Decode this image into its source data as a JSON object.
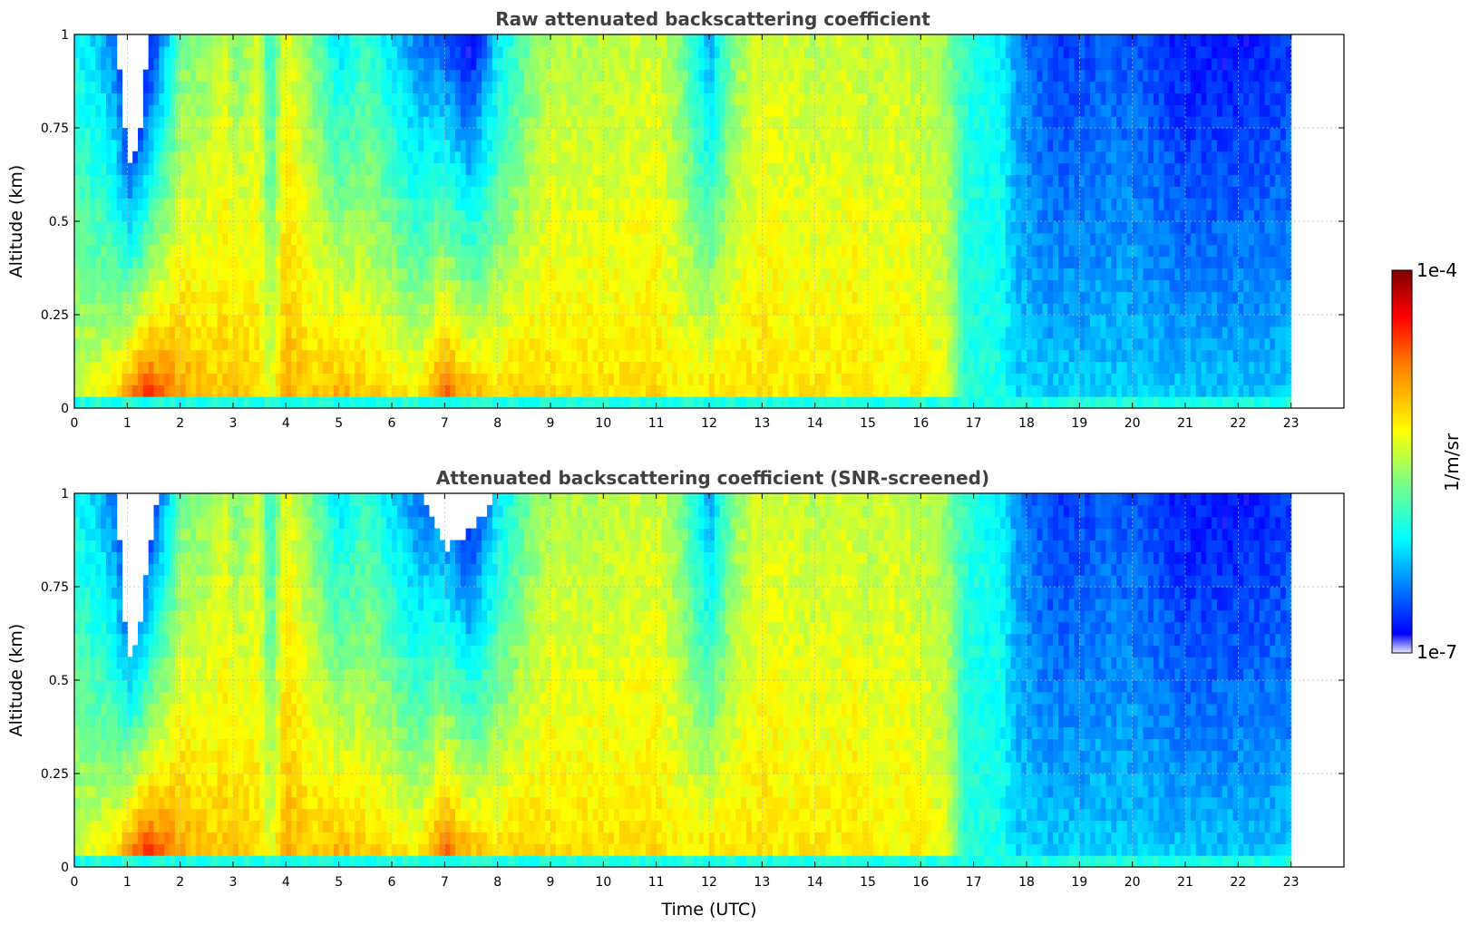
{
  "figure": {
    "xlabel": "Time (UTC)",
    "colorbar": {
      "label": "1/m/sr",
      "min_label": "1e-7",
      "max_label": "1e-4",
      "scale": "log",
      "range": [
        1e-07,
        0.0001
      ],
      "colormap": "jet",
      "colors": [
        "#e6e6ff",
        "#0000ff",
        "#00ffff",
        "#80ff80",
        "#ffff00",
        "#ff8000",
        "#ff0000",
        "#800000"
      ]
    }
  },
  "chart_data": [
    {
      "type": "heatmap",
      "title": "Raw attenuated backscattering coefficient",
      "xlabel": "",
      "ylabel": "Altitude (km)",
      "xlim": [
        0,
        24
      ],
      "ylim": [
        0,
        1
      ],
      "x_ticks": [
        "0",
        "1",
        "2",
        "3",
        "4",
        "5",
        "6",
        "7",
        "8",
        "9",
        "10",
        "11",
        "12",
        "13",
        "14",
        "15",
        "16",
        "17",
        "18",
        "19",
        "20",
        "21",
        "22",
        "23"
      ],
      "y_ticks": [
        "0",
        "0.25",
        "0.5",
        "0.75",
        "1"
      ],
      "grid": true,
      "data_end_time": 23,
      "columns_log10": {
        "time": [
          0,
          0.5,
          0.8,
          1.0,
          1.2,
          1.4,
          1.6,
          1.8,
          2.0,
          2.5,
          2.9,
          3.0,
          3.5,
          3.7,
          4.0,
          4.5,
          5.0,
          5.5,
          6.0,
          6.5,
          7.0,
          7.5,
          8.0,
          8.5,
          9.0,
          9.5,
          10.0,
          11.0,
          11.5,
          12.0,
          12.5,
          13.0,
          13.5,
          14.0,
          14.5,
          14.7,
          15.0,
          15.5,
          16.0,
          16.5,
          16.8,
          17.0,
          17.5,
          17.8,
          18.5,
          19.5,
          20.0,
          21.0,
          22.0,
          23.0
        ],
        "surface": [
          -5.3,
          -5.2,
          -5.0,
          -4.6,
          -4.4,
          -4.3,
          -4.5,
          -4.6,
          -4.8,
          -5.0,
          -5.0,
          -4.9,
          -5.1,
          -5.3,
          -4.9,
          -5.0,
          -4.8,
          -5.0,
          -5.0,
          -5.1,
          -4.5,
          -4.8,
          -5.0,
          -5.0,
          -5.1,
          -5.1,
          -5.1,
          -5.1,
          -5.2,
          -5.0,
          -5.1,
          -5.1,
          -5.2,
          -5.1,
          -5.2,
          -5.1,
          -5.2,
          -5.2,
          -5.2,
          -5.3,
          -5.9,
          -6.0,
          -6.0,
          -6.2,
          -6.2,
          -6.2,
          -6.2,
          -6.2,
          -6.2,
          -6.2
        ],
        "top": [
          -6.1,
          -6.3,
          -6.6,
          -7.3,
          -7.3,
          -6.9,
          -6.5,
          -6.2,
          -5.7,
          -5.6,
          -5.4,
          -5.7,
          -5.4,
          -6.0,
          -5.3,
          -5.7,
          -6.2,
          -5.9,
          -6.2,
          -6.5,
          -6.6,
          -6.9,
          -6.2,
          -5.8,
          -5.5,
          -5.5,
          -5.5,
          -5.4,
          -5.7,
          -6.4,
          -5.6,
          -5.4,
          -5.4,
          -5.5,
          -5.4,
          -5.4,
          -5.5,
          -5.4,
          -5.5,
          -5.6,
          -5.9,
          -6.0,
          -6.1,
          -6.4,
          -6.7,
          -6.6,
          -6.6,
          -6.8,
          -6.8,
          -6.7
        ],
        "empty_above_km": [
          1,
          1,
          1,
          0.66,
          0.68,
          1,
          1,
          1,
          1,
          1,
          1,
          1,
          1,
          1,
          1,
          1,
          1,
          1,
          1,
          1,
          1,
          1,
          1,
          1,
          1,
          1,
          1,
          1,
          1,
          1,
          1,
          1,
          1,
          1,
          1,
          1,
          1,
          1,
          1,
          1,
          1,
          1,
          1,
          1,
          1,
          1,
          1,
          1,
          1,
          1
        ]
      }
    },
    {
      "type": "heatmap",
      "title": "Attenuated backscattering coefficient (SNR-screened)",
      "xlabel": "Time (UTC)",
      "ylabel": "Altitude (km)",
      "xlim": [
        0,
        24
      ],
      "ylim": [
        0,
        1
      ],
      "x_ticks": [
        "0",
        "1",
        "2",
        "3",
        "4",
        "5",
        "6",
        "7",
        "8",
        "9",
        "10",
        "11",
        "12",
        "13",
        "14",
        "15",
        "16",
        "17",
        "18",
        "19",
        "20",
        "21",
        "22",
        "23"
      ],
      "y_ticks": [
        "0",
        "0.25",
        "0.5",
        "0.75",
        "1"
      ],
      "grid": true,
      "data_end_time": 23,
      "screened_out_color": "#000000",
      "columns_log10": {
        "time": [
          0,
          0.5,
          0.8,
          1.0,
          1.2,
          1.4,
          1.6,
          1.8,
          2.0,
          2.5,
          2.9,
          3.0,
          3.5,
          3.7,
          4.0,
          4.5,
          5.0,
          5.5,
          6.0,
          6.5,
          7.0,
          7.5,
          8.0,
          8.5,
          9.0,
          9.5,
          10.0,
          11.0,
          11.5,
          12.0,
          12.5,
          13.0,
          13.5,
          14.0,
          14.5,
          14.7,
          15.0,
          15.5,
          16.0,
          16.5,
          16.8,
          17.0,
          17.5,
          17.8,
          18.5,
          19.5,
          20.0,
          21.0,
          22.0,
          23.0
        ],
        "surface": [
          -5.3,
          -5.2,
          -5.0,
          -4.6,
          -4.4,
          -4.3,
          -4.5,
          -4.6,
          -4.8,
          -5.0,
          -5.0,
          -4.9,
          -5.1,
          -5.3,
          -4.9,
          -5.0,
          -4.8,
          -5.0,
          -5.0,
          -5.1,
          -4.5,
          -4.8,
          -5.0,
          -5.0,
          -5.1,
          -5.1,
          -5.1,
          -5.1,
          -5.2,
          -5.0,
          -5.1,
          -5.1,
          -5.2,
          -5.1,
          -5.2,
          -5.1,
          -5.2,
          -5.2,
          -5.2,
          -5.3,
          -5.9,
          -6.0,
          -6.0,
          -6.2,
          -6.2,
          -6.2,
          -6.2,
          -6.2,
          -6.2,
          -6.2
        ],
        "top": [
          -6.1,
          -6.3,
          -6.6,
          -7.3,
          -7.3,
          -6.9,
          -6.5,
          -6.2,
          -5.7,
          -5.6,
          -5.4,
          -5.7,
          -5.4,
          -6.0,
          -5.3,
          -5.7,
          -6.2,
          -5.9,
          -6.2,
          -6.5,
          -6.6,
          -6.9,
          -6.2,
          -5.8,
          -5.5,
          -5.5,
          -5.5,
          -5.4,
          -5.7,
          -6.4,
          -5.6,
          -5.4,
          -5.4,
          -5.5,
          -5.4,
          -5.4,
          -5.5,
          -5.4,
          -5.5,
          -5.6,
          -5.9,
          -6.0,
          -6.1,
          -6.4,
          -6.7,
          -6.6,
          -6.6,
          -6.8,
          -6.8,
          -6.7
        ],
        "empty_above_km": [
          1,
          1,
          1,
          0.55,
          0.6,
          0.85,
          1,
          1,
          1,
          1,
          1,
          1,
          1,
          1,
          1,
          1,
          1,
          1,
          1,
          1,
          0.85,
          0.9,
          1,
          1,
          1,
          1,
          1,
          1,
          1,
          1,
          1,
          1,
          1,
          1,
          1,
          1,
          1,
          1,
          1,
          1,
          1,
          1,
          1,
          1,
          1,
          1,
          1,
          1,
          1,
          1
        ]
      }
    }
  ]
}
